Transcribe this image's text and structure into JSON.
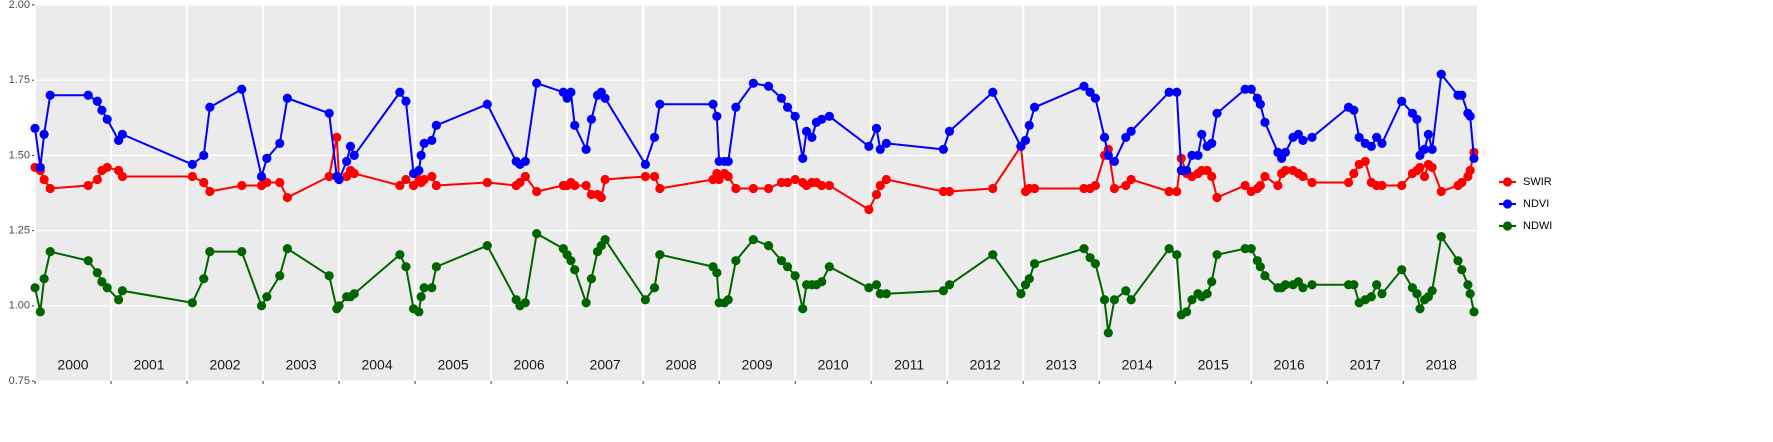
{
  "chart_data": {
    "type": "line",
    "x": [
      2000.0,
      2000.07,
      2000.12,
      2000.2,
      2000.7,
      2000.82,
      2000.88,
      2000.95,
      2001.1,
      2001.15,
      2002.07,
      2002.22,
      2002.3,
      2002.72,
      2002.98,
      2003.05,
      2003.22,
      2003.32,
      2003.87,
      2003.97,
      2004.0,
      2004.1,
      2004.15,
      2004.2,
      2004.8,
      2004.88,
      2004.98,
      2005.05,
      2005.08,
      2005.12,
      2005.22,
      2005.28,
      2005.95,
      2006.33,
      2006.38,
      2006.45,
      2006.6,
      2006.95,
      2007.0,
      2007.05,
      2007.1,
      2007.25,
      2007.32,
      2007.4,
      2007.45,
      2007.5,
      2008.03,
      2008.15,
      2008.22,
      2008.92,
      2008.97,
      2009.0,
      2009.07,
      2009.12,
      2009.22,
      2009.45,
      2009.65,
      2009.82,
      2009.9,
      2010.0,
      2010.1,
      2010.15,
      2010.22,
      2010.28,
      2010.35,
      2010.45,
      2010.97,
      2011.07,
      2011.12,
      2011.2,
      2011.95,
      2012.03,
      2012.6,
      2012.97,
      2013.03,
      2013.08,
      2013.15,
      2013.8,
      2013.88,
      2013.95,
      2014.07,
      2014.12,
      2014.2,
      2014.35,
      2014.42,
      2014.92,
      2015.02,
      2015.08,
      2015.15,
      2015.22,
      2015.3,
      2015.35,
      2015.42,
      2015.48,
      2015.55,
      2015.92,
      2016.0,
      2016.08,
      2016.12,
      2016.18,
      2016.35,
      2016.4,
      2016.45,
      2016.55,
      2016.62,
      2016.68,
      2016.8,
      2017.28,
      2017.35,
      2017.42,
      2017.5,
      2017.58,
      2017.65,
      2017.72,
      2017.98,
      2018.12,
      2018.18,
      2018.22,
      2018.28,
      2018.33,
      2018.38,
      2018.5,
      2018.72,
      2018.77,
      2018.85,
      2018.88,
      2018.93
    ],
    "series": [
      {
        "name": "SWIR",
        "color": "#ff0000",
        "values": [
          1.46,
          1.45,
          1.42,
          1.39,
          1.4,
          1.42,
          1.45,
          1.46,
          1.45,
          1.43,
          1.43,
          1.41,
          1.38,
          1.4,
          1.4,
          1.41,
          1.41,
          1.36,
          1.43,
          1.56,
          1.42,
          1.43,
          1.45,
          1.44,
          1.4,
          1.42,
          1.4,
          1.42,
          1.41,
          1.42,
          1.43,
          1.4,
          1.41,
          1.4,
          1.41,
          1.43,
          1.38,
          1.4,
          1.4,
          1.41,
          1.4,
          1.4,
          1.37,
          1.37,
          1.36,
          1.42,
          1.43,
          1.43,
          1.39,
          1.42,
          1.44,
          1.42,
          1.44,
          1.43,
          1.39,
          1.39,
          1.39,
          1.41,
          1.41,
          1.42,
          1.41,
          1.4,
          1.41,
          1.41,
          1.4,
          1.4,
          1.32,
          1.37,
          1.4,
          1.42,
          1.38,
          1.38,
          1.39,
          1.53,
          1.38,
          1.39,
          1.39,
          1.39,
          1.39,
          1.4,
          1.5,
          1.52,
          1.39,
          1.4,
          1.42,
          1.38,
          1.38,
          1.49,
          1.44,
          1.43,
          1.44,
          1.45,
          1.45,
          1.43,
          1.36,
          1.4,
          1.38,
          1.39,
          1.4,
          1.43,
          1.4,
          1.44,
          1.45,
          1.45,
          1.44,
          1.43,
          1.41,
          1.41,
          1.44,
          1.47,
          1.48,
          1.41,
          1.4,
          1.4,
          1.4,
          1.44,
          1.45,
          1.46,
          1.43,
          1.47,
          1.46,
          1.38,
          1.4,
          1.41,
          1.43,
          1.45,
          1.51
        ]
      },
      {
        "name": "NDVI",
        "color": "#0000ff",
        "values": [
          1.59,
          1.46,
          1.57,
          1.7,
          1.7,
          1.68,
          1.65,
          1.62,
          1.55,
          1.57,
          1.47,
          1.5,
          1.66,
          1.72,
          1.43,
          1.49,
          1.54,
          1.69,
          1.64,
          1.43,
          1.42,
          1.48,
          1.53,
          1.5,
          1.71,
          1.68,
          1.44,
          1.45,
          1.5,
          1.54,
          1.55,
          1.6,
          1.67,
          1.48,
          1.47,
          1.48,
          1.74,
          1.71,
          1.69,
          1.71,
          1.6,
          1.52,
          1.62,
          1.7,
          1.71,
          1.69,
          1.47,
          1.56,
          1.67,
          1.67,
          1.63,
          1.48,
          1.48,
          1.48,
          1.66,
          1.74,
          1.73,
          1.69,
          1.66,
          1.63,
          1.49,
          1.58,
          1.56,
          1.61,
          1.62,
          1.63,
          1.53,
          1.59,
          1.52,
          1.54,
          1.52,
          1.58,
          1.71,
          1.53,
          1.55,
          1.6,
          1.66,
          1.73,
          1.71,
          1.69,
          1.56,
          1.5,
          1.48,
          1.56,
          1.58,
          1.71,
          1.71,
          1.45,
          1.45,
          1.5,
          1.5,
          1.57,
          1.53,
          1.54,
          1.64,
          1.72,
          1.72,
          1.69,
          1.67,
          1.61,
          1.51,
          1.49,
          1.51,
          1.56,
          1.57,
          1.55,
          1.56,
          1.66,
          1.65,
          1.56,
          1.54,
          1.53,
          1.56,
          1.54,
          1.68,
          1.64,
          1.62,
          1.5,
          1.52,
          1.57,
          1.52,
          1.77,
          1.7,
          1.7,
          1.64,
          1.63,
          1.49
        ]
      },
      {
        "name": "NDWI",
        "color": "#006400",
        "values": [
          1.06,
          0.98,
          1.09,
          1.18,
          1.15,
          1.11,
          1.08,
          1.06,
          1.02,
          1.05,
          1.01,
          1.09,
          1.18,
          1.18,
          1.0,
          1.03,
          1.1,
          1.19,
          1.1,
          0.99,
          1.0,
          1.03,
          1.03,
          1.04,
          1.17,
          1.13,
          0.99,
          0.98,
          1.03,
          1.06,
          1.06,
          1.13,
          1.2,
          1.02,
          1.0,
          1.01,
          1.24,
          1.19,
          1.17,
          1.15,
          1.12,
          1.01,
          1.09,
          1.18,
          1.2,
          1.22,
          1.02,
          1.06,
          1.17,
          1.13,
          1.11,
          1.01,
          1.01,
          1.02,
          1.15,
          1.22,
          1.2,
          1.15,
          1.13,
          1.1,
          0.99,
          1.07,
          1.07,
          1.07,
          1.08,
          1.13,
          1.06,
          1.07,
          1.04,
          1.04,
          1.05,
          1.07,
          1.17,
          1.04,
          1.07,
          1.09,
          1.14,
          1.19,
          1.16,
          1.14,
          1.02,
          0.91,
          1.02,
          1.05,
          1.02,
          1.19,
          1.17,
          0.97,
          0.98,
          1.02,
          1.04,
          1.03,
          1.04,
          1.08,
          1.17,
          1.19,
          1.19,
          1.15,
          1.13,
          1.1,
          1.06,
          1.06,
          1.07,
          1.07,
          1.08,
          1.06,
          1.07,
          1.07,
          1.07,
          1.01,
          1.02,
          1.03,
          1.07,
          1.04,
          1.12,
          1.06,
          1.04,
          0.99,
          1.02,
          1.03,
          1.05,
          1.23,
          1.15,
          1.12,
          1.07,
          1.04,
          0.98
        ]
      }
    ],
    "xlim": [
      2000,
      2018.97
    ],
    "xticks": [
      2000,
      2001,
      2002,
      2003,
      2004,
      2005,
      2006,
      2007,
      2008,
      2009,
      2010,
      2011,
      2012,
      2013,
      2014,
      2015,
      2016,
      2017,
      2018
    ],
    "ylim": [
      0.75,
      2.0
    ],
    "yticks": [
      {
        "value": 0.75,
        "label": "0.75"
      },
      {
        "value": 1,
        "label": "1.00"
      },
      {
        "value": 1.25,
        "label": "1.25"
      },
      {
        "value": 1.5,
        "label": "1.50"
      },
      {
        "value": 1.75,
        "label": "1.75"
      },
      {
        "value": 2,
        "label": "2.00"
      }
    ],
    "grid": true,
    "legend": "right"
  }
}
